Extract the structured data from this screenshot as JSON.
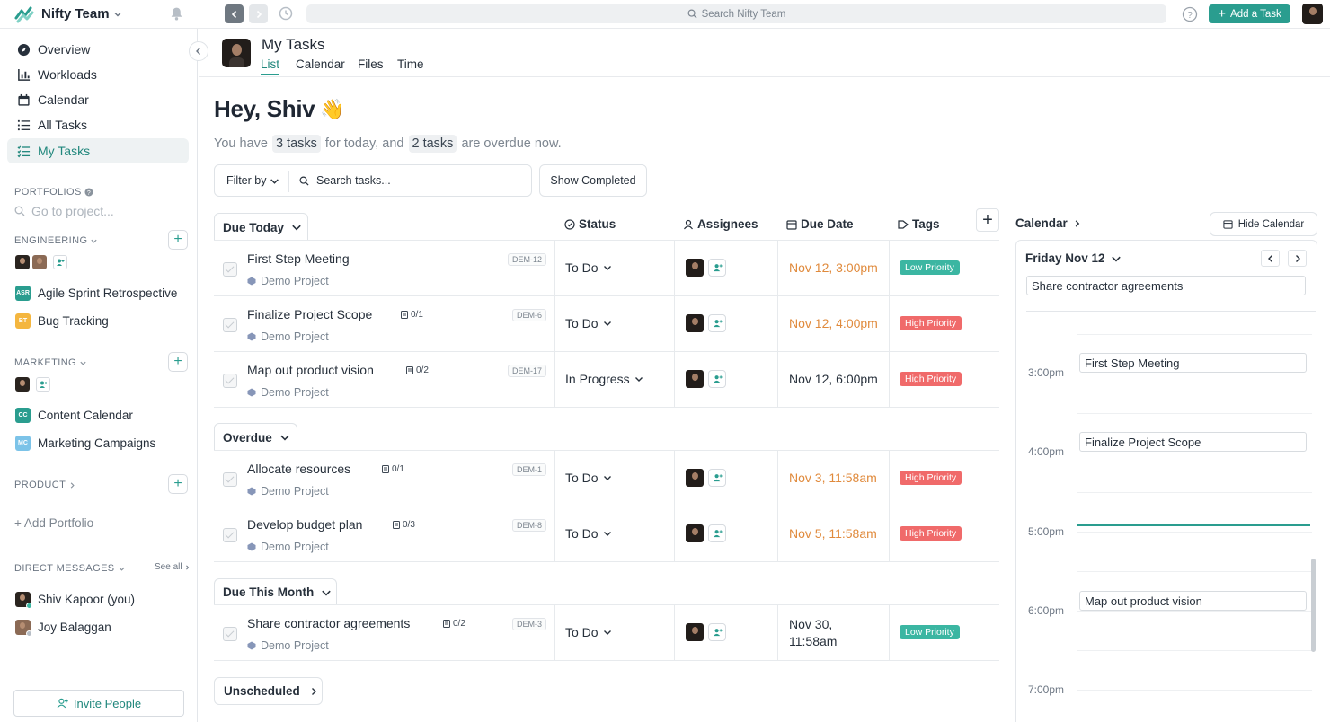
{
  "app": {
    "team_name": "Nifty Team"
  },
  "topbar": {
    "search_placeholder": "Search Nifty Team",
    "add_task_label": "Add a Task"
  },
  "sidebar": {
    "nav": [
      {
        "label": "Overview",
        "icon": "compass-icon"
      },
      {
        "label": "Workloads",
        "icon": "bar-chart-icon"
      },
      {
        "label": "Calendar",
        "icon": "calendar-icon"
      },
      {
        "label": "All Tasks",
        "icon": "list-icon"
      },
      {
        "label": "My Tasks",
        "icon": "checklist-icon",
        "active": true
      }
    ],
    "portfolios_title": "PORTFOLIOS",
    "go_to_project_placeholder": "Go to project...",
    "engineering": {
      "title": "ENGINEERING",
      "projects": [
        {
          "badge": "ASR",
          "label": "Agile Sprint Retrospective",
          "color": "#2a9d8f"
        },
        {
          "badge": "BT",
          "label": "Bug Tracking",
          "color": "#f4b63f"
        }
      ]
    },
    "marketing": {
      "title": "MARKETING",
      "projects": [
        {
          "badge": "CC",
          "label": "Content Calendar",
          "color": "#2a9d8f"
        },
        {
          "badge": "MC",
          "label": "Marketing Campaigns",
          "color": "#7cc3e8"
        }
      ]
    },
    "product": {
      "title": "PRODUCT"
    },
    "add_portfolio": "+ Add Portfolio",
    "dm": {
      "title": "DIRECT MESSAGES",
      "see_all": "See all",
      "people": [
        "Shiv Kapoor (you)",
        "Joy Balaggan"
      ]
    },
    "invite": "Invite People"
  },
  "header": {
    "title": "My Tasks",
    "tabs": [
      "List",
      "Calendar",
      "Files",
      "Time"
    ],
    "active_tab": "List"
  },
  "greeting": {
    "hello": "Hey, Shiv",
    "wave": "👋",
    "p1": "You have",
    "today_count": "3 tasks",
    "p2": "for today, and",
    "overdue_count": "2 tasks",
    "p3": "are overdue now."
  },
  "filters": {
    "filter_by": "Filter by",
    "search_placeholder": "Search tasks...",
    "show_completed": "Show Completed"
  },
  "columns": {
    "status": "Status",
    "assignees": "Assignees",
    "due": "Due Date",
    "tags": "Tags"
  },
  "groups": {
    "today": {
      "label": "Due Today",
      "tasks": [
        {
          "name": "First Step Meeting",
          "project": "Demo Project",
          "id": "DEM-12",
          "subtasks": "",
          "status": "To Do",
          "due": "Nov 12, 3:00pm",
          "due_overdue": true,
          "tag": "Low Priority"
        },
        {
          "name": "Finalize Project Scope",
          "project": "Demo Project",
          "id": "DEM-6",
          "subtasks": "0/1",
          "status": "To Do",
          "due": "Nov 12, 4:00pm",
          "due_overdue": true,
          "tag": "High Priority"
        },
        {
          "name": "Map out product vision",
          "project": "Demo Project",
          "id": "DEM-17",
          "subtasks": "0/2",
          "status": "In Progress",
          "due": "Nov 12, 6:00pm",
          "due_overdue": false,
          "tag": "High Priority"
        }
      ]
    },
    "overdue": {
      "label": "Overdue",
      "tasks": [
        {
          "name": "Allocate resources",
          "project": "Demo Project",
          "id": "DEM-1",
          "subtasks": "0/1",
          "status": "To Do",
          "due": "Nov 3, 11:58am",
          "tag": "High Priority"
        },
        {
          "name": "Develop budget plan",
          "project": "Demo Project",
          "id": "DEM-8",
          "subtasks": "0/3",
          "status": "To Do",
          "due": "Nov 5, 11:58am",
          "tag": "High Priority"
        }
      ]
    },
    "month": {
      "label": "Due This Month",
      "tasks": [
        {
          "name": "Share contractor agreements",
          "project": "Demo Project",
          "id": "DEM-3",
          "subtasks": "0/2",
          "status": "To Do",
          "due_line1": "Nov 30,",
          "due_line2": "11:58am",
          "tag": "Low Priority"
        }
      ]
    },
    "unscheduled": {
      "label": "Unscheduled"
    }
  },
  "calendar": {
    "title": "Calendar",
    "hide_label": "Hide Calendar",
    "date": "Friday Nov 12",
    "allday_event": "Share contractor agreements",
    "slots": [
      "3:00pm",
      "4:00pm",
      "5:00pm",
      "6:00pm",
      "7:00pm"
    ],
    "events": [
      "First Step Meeting",
      "Finalize Project Scope",
      "Map out product vision"
    ]
  },
  "colors": {
    "accent": "#2a9d8f",
    "overdue": "#e08a3c",
    "low_priority": "#3bb6a2",
    "high_priority": "#f06a6a"
  }
}
